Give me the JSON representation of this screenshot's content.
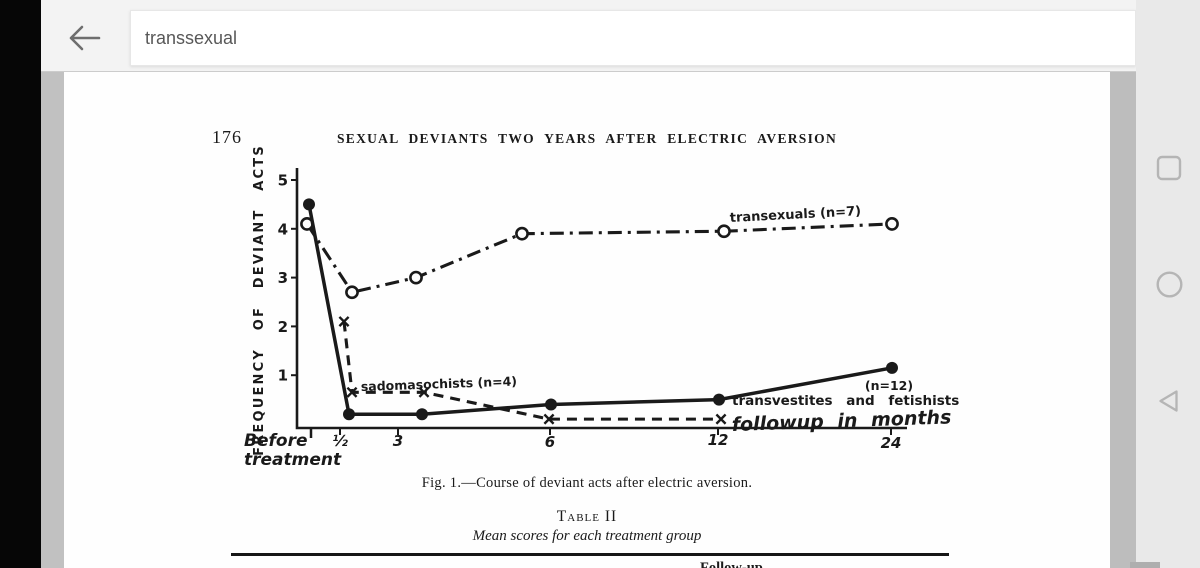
{
  "browser": {
    "search_query": "transsexual"
  },
  "android_nav": {
    "recents_icon": "recents-square",
    "home_icon": "home-circle",
    "back_icon": "back-triangle"
  },
  "document": {
    "page_number": "176",
    "running_title": "SEXUAL DEVIANTS TWO YEARS AFTER ELECTRIC AVERSION",
    "figure_caption": "Fig. 1.—Course of deviant acts after electric aversion.",
    "table_title": "Table II",
    "table_subtitle": "Mean scores for each treatment group",
    "partial_bottom_text": "Follow-up"
  },
  "chart_data": {
    "type": "line",
    "title": "Course of deviant acts after electric aversion",
    "ylabel": "FREQUENCY OF DEVIANT ACTS",
    "xlabel": "followup in months",
    "x_axis": {
      "before_label": [
        "Before",
        "treatment"
      ],
      "ticks": [
        "½",
        "3",
        "6",
        "12",
        "24"
      ],
      "scale": "non-linear months"
    },
    "y_axis": {
      "ticks": [
        1,
        2,
        3,
        4,
        5
      ],
      "range": [
        0,
        5
      ],
      "grid": false
    },
    "categories": [
      "before treatment",
      "0.5",
      "3",
      "6",
      "12",
      "24"
    ],
    "series": [
      {
        "name": "transexuals",
        "label": "transexuals (n=7)",
        "n": 7,
        "style": "dash-dot",
        "marker": "open-circle",
        "values": [
          4.1,
          2.7,
          3.0,
          3.9,
          3.95,
          4.1
        ]
      },
      {
        "name": "sadomasochists",
        "label": "sadomasochists (n=4)",
        "n": 4,
        "style": "dashed",
        "marker": "x",
        "values": [
          2.1,
          0.65,
          0.65,
          0.1,
          0.1,
          null
        ]
      },
      {
        "name": "transvestites-fetishists",
        "label": "transvestites and fetishists",
        "label2": "(n=12)",
        "n": 12,
        "style": "solid",
        "marker": "filled-circle",
        "values": [
          4.5,
          0.2,
          0.2,
          0.4,
          0.5,
          1.15
        ]
      }
    ]
  }
}
